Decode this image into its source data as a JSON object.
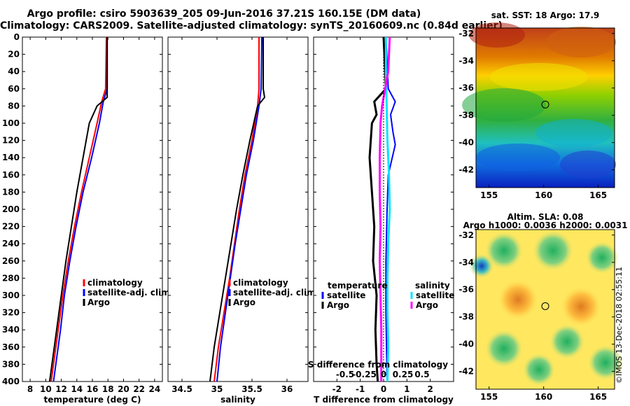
{
  "title": {
    "line1": "Argo profile: csiro 5903639_205 09-Jun-2016 37.21S 160.15E (DM data)",
    "line2": "Climatology: CARS2009. Satellite-adjusted climatology: synTS_20160609.nc (0.84d earlier)"
  },
  "credit": "©IMOS 13-Dec-2018 02:55:11",
  "colors": {
    "climatology": "#ff0000",
    "satellite": "#0000ff",
    "argo": "#000000",
    "sat_salinity": "#00e5ff",
    "clim_salinity": "#ff00ff"
  },
  "chart_data": [
    {
      "type": "line",
      "name": "temperature-panel",
      "xlabel": "temperature (deg C)",
      "ylabel": "",
      "xlim": [
        7,
        25
      ],
      "ylim": [
        400,
        0
      ],
      "xticks": [
        "8",
        "10",
        "12",
        "14",
        "16",
        "18",
        "20",
        "22",
        "24"
      ],
      "yticks": [
        "0",
        "20",
        "40",
        "60",
        "80",
        "100",
        "120",
        "140",
        "160",
        "180",
        "200",
        "220",
        "240",
        "260",
        "280",
        "300",
        "320",
        "340",
        "360",
        "380",
        "400"
      ],
      "legend": [
        "climatology",
        "satellite-adj. clim.",
        "Argo"
      ],
      "series": [
        {
          "name": "climatology",
          "depth": [
            0,
            60,
            75,
            100,
            140,
            180,
            220,
            260,
            300,
            340,
            380,
            400
          ],
          "values": [
            17.8,
            17.7,
            17.2,
            16.6,
            15.6,
            14.6,
            13.7,
            12.9,
            12.2,
            11.6,
            11.0,
            10.7
          ]
        },
        {
          "name": "satellite-adj. clim.",
          "depth": [
            0,
            60,
            75,
            100,
            140,
            180,
            220,
            260,
            300,
            340,
            380,
            400
          ],
          "values": [
            17.9,
            17.9,
            17.4,
            16.9,
            15.9,
            14.8,
            13.9,
            13.1,
            12.4,
            11.9,
            11.3,
            11.0
          ]
        },
        {
          "name": "Argo",
          "depth": [
            0,
            60,
            70,
            80,
            100,
            140,
            180,
            220,
            260,
            300,
            340,
            380,
            400
          ],
          "values": [
            17.9,
            17.9,
            17.9,
            16.6,
            15.6,
            14.8,
            14.0,
            13.3,
            12.6,
            12.0,
            11.4,
            10.8,
            10.5
          ]
        }
      ]
    },
    {
      "type": "line",
      "name": "salinity-panel",
      "xlabel": "salinity",
      "xlim": [
        34.3,
        36.3
      ],
      "ylim": [
        400,
        0
      ],
      "xticks": [
        "34.5",
        "35",
        "35.5",
        "36"
      ],
      "legend": [
        "climatology",
        "satellite-adj. clim.",
        "Argo"
      ],
      "series": [
        {
          "name": "climatology",
          "depth": [
            0,
            60,
            80,
            120,
            160,
            200,
            240,
            280,
            320,
            360,
            400
          ],
          "values": [
            35.6,
            35.6,
            35.58,
            35.5,
            35.4,
            35.32,
            35.25,
            35.18,
            35.1,
            35.02,
            34.96
          ]
        },
        {
          "name": "satellite-adj. clim.",
          "depth": [
            0,
            60,
            80,
            120,
            160,
            200,
            240,
            280,
            320,
            360,
            400
          ],
          "values": [
            35.64,
            35.63,
            35.6,
            35.52,
            35.42,
            35.34,
            35.26,
            35.19,
            35.12,
            35.05,
            35.0
          ]
        },
        {
          "name": "Argo",
          "depth": [
            0,
            60,
            70,
            80,
            120,
            160,
            200,
            240,
            280,
            320,
            360,
            400
          ],
          "values": [
            35.66,
            35.66,
            35.68,
            35.58,
            35.47,
            35.37,
            35.28,
            35.2,
            35.12,
            35.04,
            34.96,
            34.9
          ]
        }
      ]
    },
    {
      "type": "line",
      "name": "difference-panel",
      "xlabel": "T difference from climatology",
      "xlabel_top": "S difference from climatology",
      "xlim": [
        -3,
        3
      ],
      "ylim": [
        400,
        0
      ],
      "xticks": [
        "-2",
        "-1",
        "0",
        "1",
        "2"
      ],
      "xticks_salinity": [
        "-0.5",
        "-0.25",
        "0",
        "0.25",
        "0.5"
      ],
      "legend_temperature": {
        "heading": "temperature",
        "entries": [
          "satellite",
          "Argo"
        ]
      },
      "legend_salinity": {
        "heading": "salinity",
        "entries": [
          "satellite",
          "Argo"
        ]
      },
      "series": [
        {
          "name": "T satellite",
          "depth": [
            0,
            60,
            75,
            90,
            110,
            125,
            160,
            200,
            260,
            320,
            400
          ],
          "values": [
            0.1,
            0.2,
            0.5,
            0.3,
            0.4,
            0.5,
            0.2,
            0.15,
            0.1,
            0.1,
            0.15
          ]
        },
        {
          "name": "T Argo",
          "depth": [
            0,
            60,
            75,
            90,
            100,
            140,
            180,
            220,
            260,
            300,
            340,
            380,
            400
          ],
          "values": [
            0.0,
            0.1,
            -0.4,
            -0.3,
            -0.5,
            -0.6,
            -0.5,
            -0.4,
            -0.45,
            -0.3,
            -0.35,
            -0.3,
            -0.25
          ]
        },
        {
          "name": "S satellite",
          "depth": [
            0,
            40,
            80,
            120,
            160,
            200,
            240,
            280,
            320,
            360,
            400
          ],
          "values": [
            0.03,
            0.03,
            0.04,
            0.05,
            0.07,
            0.08,
            0.06,
            0.05,
            0.05,
            0.06,
            0.05
          ]
        },
        {
          "name": "S Argo",
          "depth": [
            0,
            40,
            80,
            100,
            140,
            180,
            220,
            260,
            300,
            340,
            400
          ],
          "values": [
            0.08,
            0.06,
            -0.02,
            -0.04,
            -0.05,
            -0.05,
            -0.04,
            -0.05,
            -0.04,
            -0.03,
            -0.03
          ]
        }
      ]
    },
    {
      "type": "heatmap",
      "name": "sst-map",
      "title": "sat. SST: 18 Argo: 17.9",
      "xticks": [
        "155",
        "160",
        "165"
      ],
      "yticks": [
        "-32",
        "-34",
        "-36",
        "-38",
        "-40",
        "-42"
      ],
      "marker": {
        "lon": 160.15,
        "lat": -37.21
      }
    },
    {
      "type": "heatmap",
      "name": "sla-map",
      "title": "Altim. SLA: 0.08",
      "subtitle": "Argo h1000: 0.0036 h2000: 0.0031",
      "xticks": [
        "155",
        "160",
        "165"
      ],
      "yticks": [
        "-32",
        "-34",
        "-36",
        "-38",
        "-40",
        "-42"
      ],
      "marker": {
        "lon": 160.15,
        "lat": -37.21
      }
    }
  ]
}
